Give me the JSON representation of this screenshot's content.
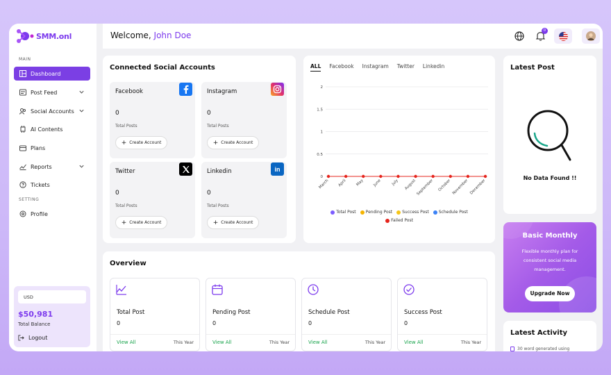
{
  "brand": {
    "name": "SMM.onl"
  },
  "sidebar": {
    "sections": {
      "main": "MAIN",
      "setting": "SETTING"
    },
    "items": [
      {
        "label": "Dashboard",
        "icon": "dashboard-icon",
        "active": true
      },
      {
        "label": "Post Feed",
        "icon": "post-feed-icon",
        "expandable": true
      },
      {
        "label": "Social Accounts",
        "icon": "social-accounts-icon",
        "expandable": true
      },
      {
        "label": "AI Contents",
        "icon": "ai-icon"
      },
      {
        "label": "Plans",
        "icon": "plans-icon"
      },
      {
        "label": "Reports",
        "icon": "reports-icon",
        "expandable": true
      },
      {
        "label": "Tickets",
        "icon": "tickets-icon"
      },
      {
        "label": "Profile",
        "icon": "profile-icon"
      }
    ],
    "balance": {
      "currency": "USD",
      "value": "$50,981",
      "label": "Total Balance",
      "logout": "Logout"
    }
  },
  "header": {
    "welcome": "Welcome,",
    "user": "John Doe",
    "notification_count": "0"
  },
  "connected": {
    "title": "Connected Social Accounts",
    "accounts": [
      {
        "name": "Facebook",
        "count": "0",
        "label": "Total Posts",
        "button": "Create Account",
        "color": "#1877f2"
      },
      {
        "name": "Instagram",
        "count": "0",
        "label": "Total Posts",
        "button": "Create Account",
        "color": "#e1306c"
      },
      {
        "name": "Twitter",
        "count": "0",
        "label": "Total Posts",
        "button": "Create Account",
        "color": "#000000"
      },
      {
        "name": "Linkedin",
        "count": "0",
        "label": "Total Posts",
        "button": "Create Account",
        "color": "#0a66c2"
      }
    ]
  },
  "chart_tabs": [
    "ALL",
    "Facebook",
    "Instagram",
    "Twitter",
    "Linkedin"
  ],
  "chart_data": {
    "type": "line",
    "categories": [
      "March",
      "April",
      "May",
      "June",
      "July",
      "August",
      "September",
      "October",
      "November",
      "December"
    ],
    "ylim": [
      0,
      2
    ],
    "yticks": [
      "0",
      "0.5",
      "1",
      "1.5",
      "2"
    ],
    "grid": true,
    "legend_position": "bottom",
    "series": [
      {
        "name": "Total Post",
        "color": "#7c5cff",
        "values": [
          0,
          0,
          0,
          0,
          0,
          0,
          0,
          0,
          0,
          0
        ]
      },
      {
        "name": "Pending Post",
        "color": "#f5b400",
        "values": [
          0,
          0,
          0,
          0,
          0,
          0,
          0,
          0,
          0,
          0
        ]
      },
      {
        "name": "Success Post",
        "color": "#f5c518",
        "values": [
          0,
          0,
          0,
          0,
          0,
          0,
          0,
          0,
          0,
          0
        ]
      },
      {
        "name": "Schedule Post",
        "color": "#3b82f6",
        "values": [
          0,
          0,
          0,
          0,
          0,
          0,
          0,
          0,
          0,
          0
        ]
      },
      {
        "name": "Failed Post",
        "color": "#e5231b",
        "values": [
          0,
          0,
          0,
          0,
          0,
          0,
          0,
          0,
          0,
          0
        ]
      }
    ]
  },
  "latest_post": {
    "title": "Latest Post",
    "empty": "No Data Found !!"
  },
  "plan": {
    "title": "Basic Monthly",
    "description": "Flexible monthly plan for consistent social media management.",
    "button": "Upgrade Now"
  },
  "overview": {
    "title": "Overview",
    "items": [
      {
        "title": "Total Post",
        "value": "0",
        "link": "View All",
        "period": "This Year",
        "icon": "chart-line-icon"
      },
      {
        "title": "Pending Post",
        "value": "0",
        "link": "View All",
        "period": "This Year",
        "icon": "calendar-icon"
      },
      {
        "title": "Schedule Post",
        "value": "0",
        "link": "View All",
        "period": "This Year",
        "icon": "clock-icon"
      },
      {
        "title": "Success Post",
        "value": "0",
        "link": "View All",
        "period": "This Year",
        "icon": "check-circle-icon"
      }
    ]
  },
  "activity": {
    "title": "Latest Activity",
    "first_item": "30 word generated using"
  },
  "colors": {
    "accent": "#7c3aed",
    "success": "#16a34a"
  }
}
